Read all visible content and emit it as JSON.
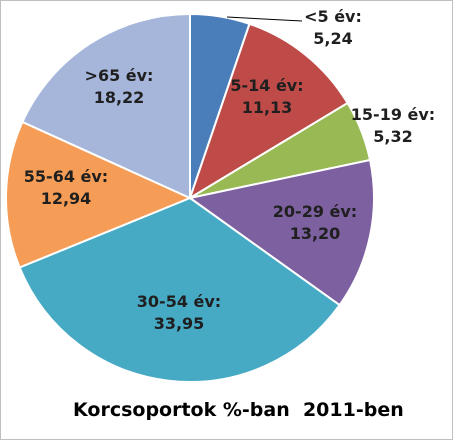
{
  "chart_data": {
    "type": "pie",
    "title": "Korcsoportok %-ban  2011-ben",
    "slices": [
      {
        "label": "<5 év:",
        "value": 5.24,
        "value_text": "5,24",
        "color": "#4a7ebb"
      },
      {
        "label": "5-14 év:",
        "value": 11.13,
        "value_text": "11,13",
        "color": "#be4b48"
      },
      {
        "label": "15-19 év:",
        "value": 5.32,
        "value_text": "5,32",
        "color": "#98b954"
      },
      {
        "label": "20-29 év:",
        "value": 13.2,
        "value_text": "13,20",
        "color": "#7d60a0"
      },
      {
        "label": "30-54 év:",
        "value": 33.95,
        "value_text": "33,95",
        "color": "#46aac5"
      },
      {
        "label": "55-64 év:",
        "value": 12.94,
        "value_text": "12,94",
        "color": "#f59d56"
      },
      {
        "label": ">65 év:",
        "value": 18.22,
        "value_text": "18,22",
        "color": "#a5b6da"
      }
    ],
    "legend": "none"
  }
}
